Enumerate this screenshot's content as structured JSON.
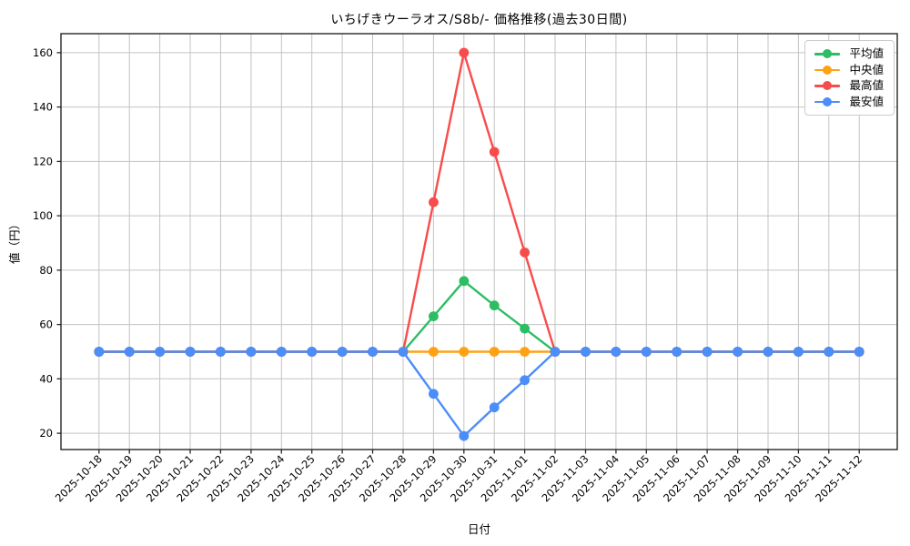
{
  "title": "いちげきウーラオス/S8b/- 価格推移(過去30日間)",
  "chart_data": {
    "type": "line",
    "title": "いちげきウーラオス/S8b/- 価格推移(過去30日間)",
    "xlabel": "日付",
    "ylabel": "値（円）",
    "x": [
      "2025-10-18",
      "2025-10-19",
      "2025-10-20",
      "2025-10-21",
      "2025-10-22",
      "2025-10-23",
      "2025-10-24",
      "2025-10-25",
      "2025-10-26",
      "2025-10-27",
      "2025-10-28",
      "2025-10-29",
      "2025-10-30",
      "2025-10-31",
      "2025-11-01",
      "2025-11-02",
      "2025-11-03",
      "2025-11-04",
      "2025-11-05",
      "2025-11-06",
      "2025-11-07",
      "2025-11-08",
      "2025-11-09",
      "2025-11-10",
      "2025-11-11",
      "2025-11-12"
    ],
    "series": [
      {
        "name": "平均値",
        "color": "#2dbd63",
        "values": [
          50,
          50,
          50,
          50,
          50,
          50,
          50,
          50,
          50,
          50,
          50,
          63,
          76,
          67,
          58.5,
          50,
          50,
          50,
          50,
          50,
          50,
          50,
          50,
          50,
          50,
          50
        ]
      },
      {
        "name": "中央値",
        "color": "#ffa115",
        "values": [
          50,
          50,
          50,
          50,
          50,
          50,
          50,
          50,
          50,
          50,
          50,
          50,
          50,
          50,
          50,
          50,
          50,
          50,
          50,
          50,
          50,
          50,
          50,
          50,
          50,
          50
        ]
      },
      {
        "name": "最高値",
        "color": "#f84c4c",
        "values": [
          50,
          50,
          50,
          50,
          50,
          50,
          50,
          50,
          50,
          50,
          50,
          105,
          160,
          123.5,
          86.5,
          50,
          50,
          50,
          50,
          50,
          50,
          50,
          50,
          50,
          50,
          50
        ]
      },
      {
        "name": "最安値",
        "color": "#4b8df9",
        "values": [
          50,
          50,
          50,
          50,
          50,
          50,
          50,
          50,
          50,
          50,
          50,
          34.5,
          19,
          29.5,
          39.5,
          50,
          50,
          50,
          50,
          50,
          50,
          50,
          50,
          50,
          50,
          50
        ]
      }
    ],
    "yticks": [
      20,
      40,
      60,
      80,
      100,
      120,
      140,
      160
    ],
    "ylim": [
      14,
      167
    ],
    "grid": true,
    "legend_position": "upper right"
  },
  "style": {
    "grid_color": "#c3c3c3",
    "spine_color": "#262626",
    "tick_text_color": "#000000",
    "background": "#ffffff",
    "legend_border": "#cccccc"
  }
}
